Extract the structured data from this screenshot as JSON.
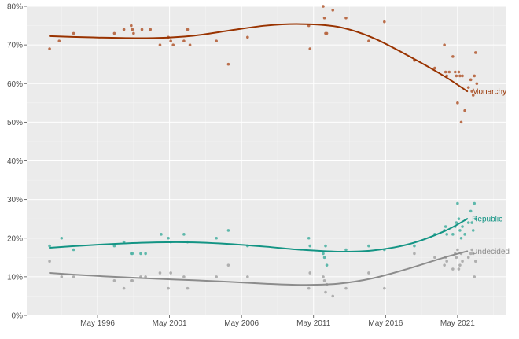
{
  "chart_data": {
    "type": "scatter",
    "title": "",
    "xlabel": "",
    "ylabel": "",
    "xlim": [
      "1991-06-01",
      "2024-09-01"
    ],
    "ylim": [
      0,
      80
    ],
    "x_ticks": [
      {
        "date": "1996-05-01",
        "label": "May 1996"
      },
      {
        "date": "2001-05-01",
        "label": "May 2001"
      },
      {
        "date": "2006-05-01",
        "label": "May 2006"
      },
      {
        "date": "2011-05-01",
        "label": "May 2011"
      },
      {
        "date": "2016-05-01",
        "label": "May 2016"
      },
      {
        "date": "2021-05-01",
        "label": "May 2021"
      }
    ],
    "y_ticks": [
      {
        "value": 0,
        "label": "0%"
      },
      {
        "value": 10,
        "label": "10%"
      },
      {
        "value": 20,
        "label": "20%"
      },
      {
        "value": 30,
        "label": "30%"
      },
      {
        "value": 40,
        "label": "40%"
      },
      {
        "value": 50,
        "label": "50%"
      },
      {
        "value": 60,
        "label": "60%"
      },
      {
        "value": 70,
        "label": "70%"
      },
      {
        "value": 80,
        "label": "80%"
      }
    ],
    "grid": true,
    "legend": "direct labels at right end of each trend line",
    "series": [
      {
        "name": "Monarchy",
        "color": "#993300",
        "point_color": "#b5603a",
        "trend": [
          [
            "1993-01-01",
            72.3
          ],
          [
            "1995-06-01",
            72.0
          ],
          [
            "1998-01-01",
            71.8
          ],
          [
            "2000-06-01",
            71.8
          ],
          [
            "2003-01-01",
            72.4
          ],
          [
            "2005-06-01",
            73.7
          ],
          [
            "2008-01-01",
            75.0
          ],
          [
            "2010-06-01",
            75.4
          ],
          [
            "2013-01-01",
            74.7
          ],
          [
            "2015-06-01",
            71.9
          ],
          [
            "2018-01-01",
            67.0
          ],
          [
            "2020-06-01",
            61.9
          ],
          [
            "2022-01-01",
            58.0
          ]
        ],
        "points": [
          [
            "1993-01-01",
            69
          ],
          [
            "1993-09-01",
            71
          ],
          [
            "1994-09-01",
            73
          ],
          [
            "1997-07-01",
            73
          ],
          [
            "1998-03-01",
            74
          ],
          [
            "1998-09-01",
            75
          ],
          [
            "1998-10-01",
            74
          ],
          [
            "1998-11-01",
            73
          ],
          [
            "1999-06-01",
            74
          ],
          [
            "2000-01-01",
            74
          ],
          [
            "2000-09-01",
            70
          ],
          [
            "2001-04-01",
            72
          ],
          [
            "2001-06-01",
            71
          ],
          [
            "2001-08-01",
            70
          ],
          [
            "2002-05-01",
            71
          ],
          [
            "2002-08-01",
            74
          ],
          [
            "2002-10-01",
            70
          ],
          [
            "2004-08-01",
            71
          ],
          [
            "2005-06-01",
            65
          ],
          [
            "2006-10-01",
            72
          ],
          [
            "2011-01-01",
            75
          ],
          [
            "2011-02-01",
            69
          ],
          [
            "2012-01-01",
            80
          ],
          [
            "2012-02-01",
            77
          ],
          [
            "2012-03-01",
            73
          ],
          [
            "2012-04-01",
            73
          ],
          [
            "2012-09-01",
            79
          ],
          [
            "2013-08-01",
            77
          ],
          [
            "2015-03-01",
            71
          ],
          [
            "2016-04-01",
            76
          ],
          [
            "2018-05-01",
            66
          ],
          [
            "2019-10-01",
            64
          ],
          [
            "2020-06-01",
            70
          ],
          [
            "2020-07-01",
            63
          ],
          [
            "2020-08-01",
            62
          ],
          [
            "2020-10-01",
            63
          ],
          [
            "2021-01-01",
            67
          ],
          [
            "2021-03-01",
            63
          ],
          [
            "2021-04-01",
            62
          ],
          [
            "2021-05-01",
            55
          ],
          [
            "2021-06-01",
            63
          ],
          [
            "2021-07-01",
            62
          ],
          [
            "2021-08-01",
            50
          ],
          [
            "2021-09-01",
            62
          ],
          [
            "2021-11-01",
            53
          ],
          [
            "2022-02-01",
            59
          ],
          [
            "2022-04-01",
            61
          ],
          [
            "2022-05-01",
            58
          ],
          [
            "2022-06-01",
            57
          ],
          [
            "2022-07-01",
            62
          ],
          [
            "2022-08-01",
            68
          ],
          [
            "2022-09-01",
            60
          ]
        ]
      },
      {
        "name": "Republic",
        "color": "#139484",
        "point_color": "#4fb3a4",
        "trend": [
          [
            "1993-01-01",
            17.5
          ],
          [
            "1995-06-01",
            18.1
          ],
          [
            "1998-01-01",
            18.6
          ],
          [
            "2000-06-01",
            18.9
          ],
          [
            "2003-01-01",
            18.9
          ],
          [
            "2005-06-01",
            18.5
          ],
          [
            "2008-01-01",
            17.8
          ],
          [
            "2010-06-01",
            17.0
          ],
          [
            "2013-01-01",
            16.5
          ],
          [
            "2015-06-01",
            16.8
          ],
          [
            "2018-01-01",
            18.5
          ],
          [
            "2020-06-01",
            21.8
          ],
          [
            "2022-01-01",
            25.0
          ]
        ],
        "points": [
          [
            "1993-01-01",
            18
          ],
          [
            "1993-11-01",
            20
          ],
          [
            "1994-09-01",
            17
          ],
          [
            "1997-07-01",
            18
          ],
          [
            "1998-03-01",
            19
          ],
          [
            "1998-09-01",
            16
          ],
          [
            "1998-10-01",
            16
          ],
          [
            "1999-05-01",
            16
          ],
          [
            "1999-09-01",
            16
          ],
          [
            "2000-10-01",
            21
          ],
          [
            "2001-04-01",
            20
          ],
          [
            "2001-06-01",
            19
          ],
          [
            "2002-05-01",
            21
          ],
          [
            "2002-08-01",
            19
          ],
          [
            "2004-08-01",
            20
          ],
          [
            "2005-06-01",
            22
          ],
          [
            "2006-10-01",
            18
          ],
          [
            "2011-01-01",
            20
          ],
          [
            "2011-02-01",
            18
          ],
          [
            "2012-01-01",
            16
          ],
          [
            "2012-02-01",
            15
          ],
          [
            "2012-03-01",
            18
          ],
          [
            "2012-04-01",
            13
          ],
          [
            "2013-08-01",
            17
          ],
          [
            "2015-03-01",
            18
          ],
          [
            "2016-04-01",
            17
          ],
          [
            "2018-05-01",
            18
          ],
          [
            "2019-10-01",
            21
          ],
          [
            "2020-06-01",
            22
          ],
          [
            "2020-07-01",
            23
          ],
          [
            "2020-08-01",
            21
          ],
          [
            "2021-01-01",
            21
          ],
          [
            "2021-03-01",
            23
          ],
          [
            "2021-04-01",
            24
          ],
          [
            "2021-05-01",
            29
          ],
          [
            "2021-06-01",
            25
          ],
          [
            "2021-07-01",
            22
          ],
          [
            "2021-08-01",
            20
          ],
          [
            "2021-09-01",
            23
          ],
          [
            "2021-11-01",
            21
          ],
          [
            "2022-02-01",
            24
          ],
          [
            "2022-04-01",
            27
          ],
          [
            "2022-05-01",
            24
          ],
          [
            "2022-06-01",
            22
          ],
          [
            "2022-07-01",
            29
          ],
          [
            "2022-08-01",
            25
          ]
        ]
      },
      {
        "name": "Undecided",
        "color": "#8c8c8c",
        "point_color": "#a8a8a8",
        "trend": [
          [
            "1993-01-01",
            11.0
          ],
          [
            "1995-06-01",
            10.4
          ],
          [
            "1998-01-01",
            9.9
          ],
          [
            "2000-06-01",
            9.5
          ],
          [
            "2003-01-01",
            9.1
          ],
          [
            "2005-06-01",
            8.7
          ],
          [
            "2008-01-01",
            8.2
          ],
          [
            "2010-06-01",
            7.9
          ],
          [
            "2013-01-01",
            8.2
          ],
          [
            "2015-06-01",
            9.6
          ],
          [
            "2018-01-01",
            12.2
          ],
          [
            "2020-06-01",
            15.0
          ],
          [
            "2022-01-01",
            16.6
          ]
        ],
        "points": [
          [
            "1993-01-01",
            14
          ],
          [
            "1993-11-01",
            10
          ],
          [
            "1994-09-01",
            10
          ],
          [
            "1997-07-01",
            9
          ],
          [
            "1998-03-01",
            7
          ],
          [
            "1998-09-01",
            9
          ],
          [
            "1998-10-01",
            9
          ],
          [
            "1999-05-01",
            10
          ],
          [
            "1999-09-01",
            10
          ],
          [
            "2000-09-01",
            11
          ],
          [
            "2001-04-01",
            7
          ],
          [
            "2001-06-01",
            11
          ],
          [
            "2002-05-01",
            10
          ],
          [
            "2002-08-01",
            7
          ],
          [
            "2004-08-01",
            10
          ],
          [
            "2005-06-01",
            13
          ],
          [
            "2006-10-01",
            10
          ],
          [
            "2011-01-01",
            7
          ],
          [
            "2011-02-01",
            11
          ],
          [
            "2012-01-01",
            10
          ],
          [
            "2012-02-01",
            9
          ],
          [
            "2012-03-01",
            6
          ],
          [
            "2012-04-01",
            8
          ],
          [
            "2012-09-01",
            5
          ],
          [
            "2013-08-01",
            7
          ],
          [
            "2015-03-01",
            11
          ],
          [
            "2016-04-01",
            7
          ],
          [
            "2018-05-01",
            16
          ],
          [
            "2019-10-01",
            15
          ],
          [
            "2020-06-01",
            13
          ],
          [
            "2020-07-01",
            15
          ],
          [
            "2020-08-01",
            14
          ],
          [
            "2021-01-01",
            12
          ],
          [
            "2021-03-01",
            16
          ],
          [
            "2021-04-01",
            15
          ],
          [
            "2021-05-01",
            17
          ],
          [
            "2021-06-01",
            12
          ],
          [
            "2021-07-01",
            13
          ],
          [
            "2021-08-01",
            16
          ],
          [
            "2021-09-01",
            14
          ],
          [
            "2022-02-01",
            15
          ],
          [
            "2022-04-01",
            16
          ],
          [
            "2022-05-01",
            17
          ],
          [
            "2022-06-01",
            16
          ],
          [
            "2022-07-01",
            10
          ],
          [
            "2022-08-01",
            14
          ]
        ]
      }
    ]
  }
}
